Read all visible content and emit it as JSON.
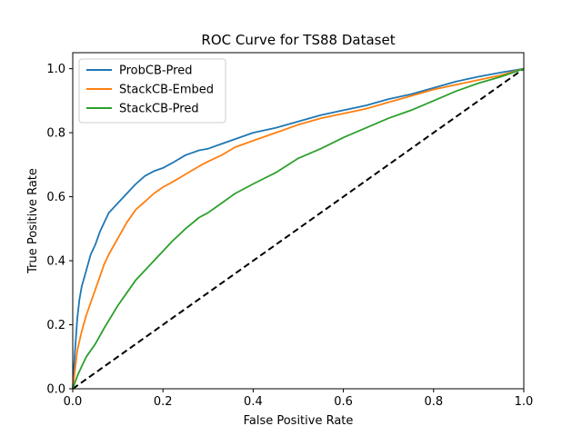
{
  "chart_data": {
    "type": "line",
    "title": "ROC Curve for TS88 Dataset",
    "xlabel": "False Positive Rate",
    "ylabel": "True Positive Rate",
    "xlim": [
      0.0,
      1.0
    ],
    "ylim": [
      0.0,
      1.05
    ],
    "xticks": [
      "0.0",
      "0.2",
      "0.4",
      "0.6",
      "0.8",
      "1.0"
    ],
    "yticks": [
      "0.0",
      "0.2",
      "0.4",
      "0.6",
      "0.8",
      "1.0"
    ],
    "grid": false,
    "legend_position": "top-left",
    "series": [
      {
        "name": "ProbCB-Pred",
        "color": "#1f77b4",
        "points": [
          [
            0,
            0
          ],
          [
            0.002,
            0.05
          ],
          [
            0.005,
            0.12
          ],
          [
            0.01,
            0.22
          ],
          [
            0.015,
            0.28
          ],
          [
            0.02,
            0.32
          ],
          [
            0.03,
            0.37
          ],
          [
            0.04,
            0.42
          ],
          [
            0.05,
            0.45
          ],
          [
            0.06,
            0.49
          ],
          [
            0.07,
            0.52
          ],
          [
            0.08,
            0.55
          ],
          [
            0.1,
            0.58
          ],
          [
            0.12,
            0.61
          ],
          [
            0.14,
            0.64
          ],
          [
            0.16,
            0.665
          ],
          [
            0.18,
            0.68
          ],
          [
            0.2,
            0.69
          ],
          [
            0.22,
            0.705
          ],
          [
            0.25,
            0.73
          ],
          [
            0.28,
            0.745
          ],
          [
            0.3,
            0.75
          ],
          [
            0.33,
            0.765
          ],
          [
            0.36,
            0.78
          ],
          [
            0.4,
            0.8
          ],
          [
            0.45,
            0.815
          ],
          [
            0.5,
            0.835
          ],
          [
            0.55,
            0.855
          ],
          [
            0.6,
            0.87
          ],
          [
            0.65,
            0.885
          ],
          [
            0.7,
            0.905
          ],
          [
            0.75,
            0.92
          ],
          [
            0.8,
            0.94
          ],
          [
            0.85,
            0.96
          ],
          [
            0.9,
            0.975
          ],
          [
            0.95,
            0.988
          ],
          [
            1.0,
            1.0
          ]
        ]
      },
      {
        "name": "StackCB-Embed",
        "color": "#ff7f0e",
        "points": [
          [
            0,
            0
          ],
          [
            0.005,
            0.06
          ],
          [
            0.01,
            0.12
          ],
          [
            0.02,
            0.18
          ],
          [
            0.03,
            0.23
          ],
          [
            0.04,
            0.27
          ],
          [
            0.05,
            0.31
          ],
          [
            0.06,
            0.35
          ],
          [
            0.07,
            0.39
          ],
          [
            0.08,
            0.42
          ],
          [
            0.1,
            0.47
          ],
          [
            0.12,
            0.52
          ],
          [
            0.14,
            0.56
          ],
          [
            0.16,
            0.585
          ],
          [
            0.18,
            0.61
          ],
          [
            0.2,
            0.63
          ],
          [
            0.22,
            0.645
          ],
          [
            0.25,
            0.67
          ],
          [
            0.28,
            0.695
          ],
          [
            0.3,
            0.71
          ],
          [
            0.33,
            0.73
          ],
          [
            0.36,
            0.755
          ],
          [
            0.4,
            0.775
          ],
          [
            0.45,
            0.8
          ],
          [
            0.5,
            0.825
          ],
          [
            0.55,
            0.845
          ],
          [
            0.6,
            0.86
          ],
          [
            0.65,
            0.875
          ],
          [
            0.7,
            0.895
          ],
          [
            0.75,
            0.915
          ],
          [
            0.8,
            0.935
          ],
          [
            0.85,
            0.95
          ],
          [
            0.9,
            0.965
          ],
          [
            0.95,
            0.98
          ],
          [
            1.0,
            1.0
          ]
        ]
      },
      {
        "name": "StackCB-Pred",
        "color": "#2ca02c",
        "points": [
          [
            0,
            0
          ],
          [
            0.01,
            0.04
          ],
          [
            0.02,
            0.07
          ],
          [
            0.03,
            0.1
          ],
          [
            0.05,
            0.14
          ],
          [
            0.07,
            0.19
          ],
          [
            0.1,
            0.26
          ],
          [
            0.12,
            0.3
          ],
          [
            0.14,
            0.34
          ],
          [
            0.16,
            0.37
          ],
          [
            0.18,
            0.4
          ],
          [
            0.2,
            0.43
          ],
          [
            0.22,
            0.46
          ],
          [
            0.25,
            0.5
          ],
          [
            0.28,
            0.535
          ],
          [
            0.3,
            0.55
          ],
          [
            0.33,
            0.58
          ],
          [
            0.36,
            0.61
          ],
          [
            0.4,
            0.64
          ],
          [
            0.45,
            0.675
          ],
          [
            0.5,
            0.72
          ],
          [
            0.55,
            0.75
          ],
          [
            0.6,
            0.785
          ],
          [
            0.65,
            0.815
          ],
          [
            0.7,
            0.845
          ],
          [
            0.75,
            0.87
          ],
          [
            0.8,
            0.9
          ],
          [
            0.85,
            0.93
          ],
          [
            0.9,
            0.955
          ],
          [
            0.95,
            0.975
          ],
          [
            1.0,
            1.0
          ]
        ]
      },
      {
        "name": "",
        "color": "#000000",
        "dashed": true,
        "points": [
          [
            0,
            0
          ],
          [
            1,
            1
          ]
        ]
      }
    ]
  }
}
